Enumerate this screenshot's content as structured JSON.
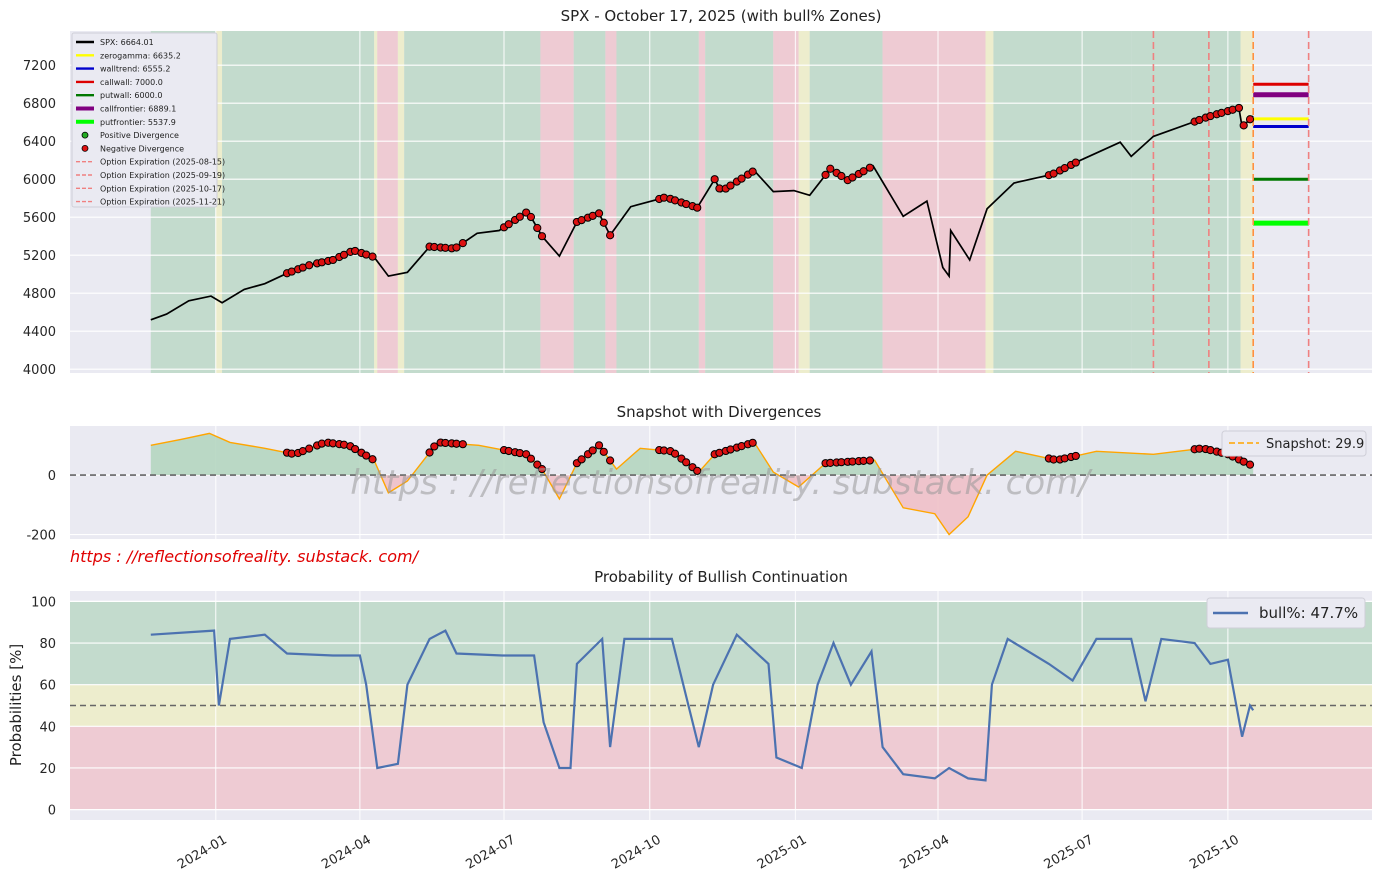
{
  "url_text": "https : //reflectionsofreality. substack. com/",
  "watermark_text": "https : //reflectionsofreality. substack. com/",
  "x_ticks": [
    "2024-01",
    "2024-04",
    "2024-07",
    "2024-10",
    "2025-01",
    "2025-04",
    "2025-07",
    "2025-10"
  ],
  "chart_data": [
    {
      "type": "line",
      "title": "SPX - October 17, 2025 (with bull% Zones)",
      "x_range": [
        "2023-10-01",
        "2025-12-31"
      ],
      "ylim": [
        3960,
        7560
      ],
      "y_ticks": [
        4000,
        4400,
        4800,
        5200,
        5600,
        6000,
        6400,
        6800,
        7200
      ],
      "legend_position": "top-left",
      "legend": [
        "SPX:  6664.01",
        "zerogamma: 6635.2",
        "walltrend: 6555.2",
        "callwall: 7000.0",
        "putwall: 6000.0",
        "callfrontier: 6889.1",
        "putfrontier: 5537.9",
        "Positive Divergence",
        "Negative Divergence",
        "Option Expiration (2025-08-15)",
        "Option Expiration (2025-09-19)",
        "Option Expiration (2025-10-17)",
        "Option Expiration (2025-11-21)"
      ],
      "colors": {
        "spx": "#000000",
        "zerogamma": "#ffff00",
        "walltrend": "#0000cc",
        "callwall": "#dd0000",
        "putwall": "#007700",
        "callfrontier": "#800080",
        "putfrontier": "#00ff00",
        "divergence": "#dd1111",
        "expiration": "#f08080",
        "zone_green": "#b5d6c0",
        "zone_yellow": "#eeeec0",
        "zone_red": "#efc0c8"
      },
      "levels": {
        "zerogamma": 6635.2,
        "walltrend": 6555.2,
        "callwall": 7000.0,
        "putwall": 6000.0,
        "callfrontier": 6889.1,
        "putfrontier": 5537.9
      },
      "expirations": [
        "2025-08-15",
        "2025-09-19",
        "2025-10-17",
        "2025-11-21"
      ],
      "series": [
        {
          "name": "SPX",
          "points": [
            [
              "2023-11-21",
              4520
            ],
            [
              "2023-12-01",
              4580
            ],
            [
              "2023-12-15",
              4720
            ],
            [
              "2023-12-29",
              4770
            ],
            [
              "2024-01-05",
              4700
            ],
            [
              "2024-01-19",
              4840
            ],
            [
              "2024-02-01",
              4900
            ],
            [
              "2024-02-15",
              5010
            ],
            [
              "2024-03-01",
              5100
            ],
            [
              "2024-03-15",
              5150
            ],
            [
              "2024-03-28",
              5250
            ],
            [
              "2024-04-10",
              5180
            ],
            [
              "2024-04-19",
              4980
            ],
            [
              "2024-05-01",
              5020
            ],
            [
              "2024-05-15",
              5290
            ],
            [
              "2024-05-31",
              5270
            ],
            [
              "2024-06-14",
              5430
            ],
            [
              "2024-06-28",
              5460
            ],
            [
              "2024-07-16",
              5660
            ],
            [
              "2024-07-25",
              5400
            ],
            [
              "2024-08-05",
              5190
            ],
            [
              "2024-08-16",
              5550
            ],
            [
              "2024-08-30",
              5640
            ],
            [
              "2024-09-06",
              5410
            ],
            [
              "2024-09-19",
              5710
            ],
            [
              "2024-10-11",
              5810
            ],
            [
              "2024-10-31",
              5700
            ],
            [
              "2024-11-11",
              6000
            ],
            [
              "2024-11-15",
              5870
            ],
            [
              "2024-12-06",
              6090
            ],
            [
              "2024-12-18",
              5870
            ],
            [
              "2024-12-31",
              5880
            ],
            [
              "2025-01-10",
              5830
            ],
            [
              "2025-01-23",
              6110
            ],
            [
              "2025-02-03",
              5990
            ],
            [
              "2025-02-19",
              6140
            ],
            [
              "2025-03-10",
              5610
            ],
            [
              "2025-03-25",
              5770
            ],
            [
              "2025-04-04",
              5070
            ],
            [
              "2025-04-08",
              4980
            ],
            [
              "2025-04-09",
              5460
            ],
            [
              "2025-04-21",
              5150
            ],
            [
              "2025-05-02",
              5690
            ],
            [
              "2025-05-19",
              5960
            ],
            [
              "2025-06-12",
              6050
            ],
            [
              "2025-06-30",
              6200
            ],
            [
              "2025-07-25",
              6390
            ],
            [
              "2025-08-01",
              6240
            ],
            [
              "2025-08-15",
              6450
            ],
            [
              "2025-09-19",
              6660
            ],
            [
              "2025-10-08",
              6750
            ],
            [
              "2025-10-10",
              6550
            ],
            [
              "2025-10-17",
              6664
            ]
          ]
        }
      ],
      "zones": [
        [
          "2023-11-21",
          "2024-01-01",
          "green"
        ],
        [
          "2024-01-01",
          "2024-01-05",
          "yellow"
        ],
        [
          "2024-01-05",
          "2024-04-10",
          "green"
        ],
        [
          "2024-04-10",
          "2024-04-12",
          "yellow"
        ],
        [
          "2024-04-12",
          "2024-04-25",
          "red"
        ],
        [
          "2024-04-25",
          "2024-04-29",
          "yellow"
        ],
        [
          "2024-04-29",
          "2024-07-24",
          "green"
        ],
        [
          "2024-07-24",
          "2024-08-14",
          "red"
        ],
        [
          "2024-08-14",
          "2024-09-03",
          "green"
        ],
        [
          "2024-09-03",
          "2024-09-10",
          "red"
        ],
        [
          "2024-09-10",
          "2024-11-01",
          "green"
        ],
        [
          "2024-11-01",
          "2024-11-05",
          "red"
        ],
        [
          "2024-11-05",
          "2024-12-18",
          "green"
        ],
        [
          "2024-12-18",
          "2024-12-22",
          "red"
        ],
        [
          "2024-12-22",
          "2025-01-03",
          "red"
        ],
        [
          "2025-01-03",
          "2025-01-10",
          "yellow"
        ],
        [
          "2025-01-10",
          "2025-02-25",
          "green"
        ],
        [
          "2025-02-25",
          "2025-05-01",
          "red"
        ],
        [
          "2025-05-01",
          "2025-05-06",
          "yellow"
        ],
        [
          "2025-05-06",
          "2025-08-01",
          "green"
        ],
        [
          "2025-08-01",
          "2025-10-09",
          "green"
        ],
        [
          "2025-10-09",
          "2025-10-17",
          "yellow"
        ]
      ],
      "divergence_ranges": [
        [
          "2024-02-15",
          "2024-03-01"
        ],
        [
          "2024-03-05",
          "2024-04-12"
        ],
        [
          "2024-05-15",
          "2024-06-05"
        ],
        [
          "2024-07-01",
          "2024-07-26"
        ],
        [
          "2024-08-16",
          "2024-09-06"
        ],
        [
          "2024-10-07",
          "2024-11-01"
        ],
        [
          "2024-11-11",
          "2024-12-06"
        ],
        [
          "2025-01-20",
          "2025-02-20"
        ],
        [
          "2025-06-10",
          "2025-06-30"
        ],
        [
          "2025-09-10",
          "2025-10-17"
        ]
      ]
    },
    {
      "type": "area",
      "title": "Snapshot with Divergences",
      "ylim": [
        -215,
        165
      ],
      "y_ticks": [
        -200,
        0
      ],
      "legend_position": "top-right",
      "legend": [
        "Snapshot: 29.9"
      ],
      "series": [
        {
          "name": "Snapshot",
          "points": [
            [
              "2023-11-21",
              100
            ],
            [
              "2023-12-10",
              120
            ],
            [
              "2023-12-28",
              140
            ],
            [
              "2024-01-10",
              110
            ],
            [
              "2024-02-01",
              90
            ],
            [
              "2024-02-20",
              70
            ],
            [
              "2024-03-10",
              110
            ],
            [
              "2024-03-25",
              100
            ],
            [
              "2024-04-10",
              50
            ],
            [
              "2024-04-19",
              -60
            ],
            [
              "2024-05-01",
              -20
            ],
            [
              "2024-05-20",
              110
            ],
            [
              "2024-06-15",
              100
            ],
            [
              "2024-07-15",
              70
            ],
            [
              "2024-07-25",
              20
            ],
            [
              "2024-08-05",
              -80
            ],
            [
              "2024-08-16",
              40
            ],
            [
              "2024-08-30",
              100
            ],
            [
              "2024-09-10",
              20
            ],
            [
              "2024-09-25",
              90
            ],
            [
              "2024-10-15",
              80
            ],
            [
              "2024-11-01",
              10
            ],
            [
              "2024-11-11",
              70
            ],
            [
              "2024-12-06",
              110
            ],
            [
              "2024-12-18",
              10
            ],
            [
              "2025-01-03",
              -40
            ],
            [
              "2025-01-20",
              40
            ],
            [
              "2025-02-20",
              50
            ],
            [
              "2025-03-10",
              -110
            ],
            [
              "2025-03-30",
              -130
            ],
            [
              "2025-04-08",
              -200
            ],
            [
              "2025-04-20",
              -140
            ],
            [
              "2025-05-02",
              0
            ],
            [
              "2025-05-20",
              80
            ],
            [
              "2025-06-15",
              50
            ],
            [
              "2025-07-10",
              80
            ],
            [
              "2025-08-15",
              70
            ],
            [
              "2025-09-15",
              90
            ],
            [
              "2025-10-01",
              70
            ],
            [
              "2025-10-17",
              30
            ]
          ]
        }
      ]
    },
    {
      "type": "line",
      "title": "Probability of Bullish Continuation",
      "ylabel": "Probabilities [%]",
      "ylim": [
        -5,
        105
      ],
      "y_ticks": [
        0,
        20,
        40,
        60,
        80,
        100
      ],
      "legend_position": "top-right",
      "legend": [
        "bull%: 47.7%"
      ],
      "bands": [
        [
          60,
          100,
          "green"
        ],
        [
          40,
          60,
          "yellow"
        ],
        [
          0,
          40,
          "red"
        ]
      ],
      "reference_line": 50,
      "series": [
        {
          "name": "bull%",
          "points": [
            [
              "2023-11-21",
              84
            ],
            [
              "2023-12-31",
              86
            ],
            [
              "2024-01-03",
              50
            ],
            [
              "2024-01-10",
              82
            ],
            [
              "2024-02-01",
              84
            ],
            [
              "2024-02-15",
              75
            ],
            [
              "2024-03-15",
              74
            ],
            [
              "2024-04-01",
              74
            ],
            [
              "2024-04-05",
              60
            ],
            [
              "2024-04-12",
              20
            ],
            [
              "2024-04-25",
              22
            ],
            [
              "2024-05-01",
              60
            ],
            [
              "2024-05-15",
              82
            ],
            [
              "2024-05-25",
              86
            ],
            [
              "2024-06-01",
              75
            ],
            [
              "2024-06-30",
              74
            ],
            [
              "2024-07-20",
              74
            ],
            [
              "2024-07-26",
              42
            ],
            [
              "2024-08-05",
              20
            ],
            [
              "2024-08-12",
              20
            ],
            [
              "2024-08-16",
              70
            ],
            [
              "2024-09-01",
              82
            ],
            [
              "2024-09-06",
              30
            ],
            [
              "2024-09-15",
              82
            ],
            [
              "2024-10-15",
              82
            ],
            [
              "2024-11-01",
              30
            ],
            [
              "2024-11-10",
              60
            ],
            [
              "2024-11-25",
              84
            ],
            [
              "2024-12-15",
              70
            ],
            [
              "2024-12-20",
              25
            ],
            [
              "2025-01-05",
              20
            ],
            [
              "2025-01-15",
              60
            ],
            [
              "2025-01-25",
              80
            ],
            [
              "2025-02-05",
              60
            ],
            [
              "2025-02-18",
              76
            ],
            [
              "2025-02-25",
              30
            ],
            [
              "2025-03-10",
              17
            ],
            [
              "2025-03-30",
              15
            ],
            [
              "2025-04-08",
              20
            ],
            [
              "2025-04-20",
              15
            ],
            [
              "2025-05-01",
              14
            ],
            [
              "2025-05-05",
              60
            ],
            [
              "2025-05-15",
              82
            ],
            [
              "2025-06-10",
              70
            ],
            [
              "2025-06-25",
              62
            ],
            [
              "2025-07-10",
              82
            ],
            [
              "2025-08-01",
              82
            ],
            [
              "2025-08-10",
              52
            ],
            [
              "2025-08-20",
              82
            ],
            [
              "2025-09-10",
              80
            ],
            [
              "2025-09-20",
              70
            ],
            [
              "2025-10-01",
              72
            ],
            [
              "2025-10-10",
              35
            ],
            [
              "2025-10-15",
              50
            ],
            [
              "2025-10-17",
              47.7
            ]
          ]
        }
      ]
    }
  ]
}
